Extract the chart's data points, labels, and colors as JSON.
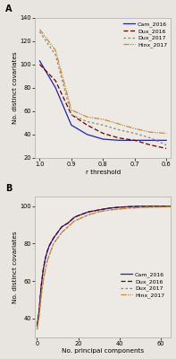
{
  "panel_A": {
    "title": "A",
    "xlabel": "r threshold",
    "ylabel": "No. distinct covariates",
    "xlim": [
      0.585,
      1.015
    ],
    "ylim": [
      20,
      140
    ],
    "yticks": [
      20,
      40,
      60,
      80,
      100,
      120,
      140
    ],
    "xticks": [
      1.0,
      0.9,
      0.8,
      0.7,
      0.6
    ],
    "series": [
      {
        "label": "Cam_2016",
        "color": "#2222aa",
        "linestyle": "solid",
        "linewidth": 0.9,
        "x": [
          1.0,
          0.95,
          0.9,
          0.85,
          0.8,
          0.75,
          0.7,
          0.65,
          0.6
        ],
        "y": [
          103,
          80,
          48,
          40,
          36,
          35,
          35,
          35,
          35
        ]
      },
      {
        "label": "Dux_2016",
        "color": "#660000",
        "linestyle": "dashed",
        "linewidth": 0.9,
        "dash_pattern": [
          4,
          2
        ],
        "x": [
          1.0,
          0.95,
          0.9,
          0.85,
          0.8,
          0.75,
          0.7,
          0.65,
          0.6
        ],
        "y": [
          100,
          86,
          57,
          48,
          41,
          37,
          35,
          31,
          28
        ]
      },
      {
        "label": "Dux_2017",
        "color": "#888866",
        "linestyle": "dashed",
        "linewidth": 0.9,
        "dash_pattern": [
          2,
          2,
          2,
          2,
          2,
          2
        ],
        "x": [
          1.0,
          0.95,
          0.9,
          0.85,
          0.8,
          0.75,
          0.7,
          0.65,
          0.6
        ],
        "y": [
          128,
          108,
          57,
          51,
          48,
          44,
          41,
          37,
          31
        ]
      },
      {
        "label": "Hinx_2017",
        "color": "#cc8833",
        "linestyle": "dashed",
        "linewidth": 0.9,
        "dash_pattern": [
          5,
          1,
          1,
          1,
          1,
          1
        ],
        "x": [
          1.0,
          0.95,
          0.9,
          0.85,
          0.8,
          0.75,
          0.7,
          0.65,
          0.6
        ],
        "y": [
          130,
          112,
          61,
          55,
          53,
          49,
          45,
          42,
          41
        ]
      }
    ]
  },
  "panel_B": {
    "title": "B",
    "xlabel": "No. principal components",
    "ylabel": "No. distinct covariates",
    "xlim": [
      -1,
      65
    ],
    "ylim": [
      30,
      105
    ],
    "yticks": [
      40,
      60,
      80,
      100
    ],
    "xticks": [
      0,
      20,
      40,
      60
    ],
    "series": [
      {
        "label": "Cam_2016",
        "color": "#2222aa",
        "linestyle": "solid",
        "linewidth": 0.9,
        "x": [
          0,
          1,
          2,
          3,
          4,
          5,
          6,
          7,
          8,
          10,
          12,
          15,
          18,
          20,
          25,
          30,
          35,
          40,
          45,
          50,
          55,
          60,
          65
        ],
        "y": [
          36,
          44,
          57,
          66,
          72,
          76,
          79,
          81,
          83,
          86,
          89,
          91,
          94,
          95,
          97,
          98,
          99,
          99.5,
          99.8,
          100,
          100,
          100,
          100
        ]
      },
      {
        "label": "Dux_2016",
        "color": "#660000",
        "linestyle": "dashed",
        "linewidth": 0.9,
        "dash_pattern": [
          4,
          2
        ],
        "x": [
          0,
          1,
          2,
          3,
          4,
          5,
          6,
          7,
          8,
          10,
          12,
          15,
          18,
          20,
          25,
          30,
          35,
          40,
          45,
          50,
          55,
          60,
          65
        ],
        "y": [
          36,
          44,
          57,
          66,
          72,
          76,
          79,
          81,
          83,
          86,
          89,
          91,
          94,
          95,
          97,
          98,
          99,
          99.5,
          99.8,
          100,
          100,
          100,
          100
        ]
      },
      {
        "label": "Dux_2017",
        "color": "#888866",
        "linestyle": "dashed",
        "linewidth": 0.9,
        "dash_pattern": [
          2,
          2,
          2,
          2,
          2,
          2
        ],
        "x": [
          0,
          1,
          2,
          3,
          4,
          5,
          6,
          7,
          8,
          10,
          12,
          15,
          18,
          20,
          25,
          30,
          35,
          40,
          45,
          50,
          55,
          60,
          65
        ],
        "y": [
          34,
          41,
          52,
          60,
          66,
          71,
          74,
          77,
          80,
          83,
          86,
          89,
          92,
          93,
          95.5,
          97,
          98,
          98.5,
          99,
          99.3,
          99.5,
          99.6,
          99.7
        ]
      },
      {
        "label": "Hinx_2017",
        "color": "#cc8833",
        "linestyle": "dashed",
        "linewidth": 0.9,
        "dash_pattern": [
          5,
          1,
          1,
          1,
          1,
          1
        ],
        "x": [
          0,
          1,
          2,
          3,
          4,
          5,
          6,
          7,
          8,
          10,
          12,
          15,
          18,
          20,
          25,
          30,
          35,
          40,
          45,
          50,
          55,
          60,
          65
        ],
        "y": [
          34,
          41,
          52,
          60,
          66,
          71,
          74,
          77,
          80,
          83,
          86,
          89,
          92,
          93,
          95.5,
          97,
          98,
          98.5,
          99,
          99.3,
          99.5,
          99.6,
          99.7
        ]
      }
    ]
  },
  "bg_color": "#e8e4e0",
  "axes_bg": "#ede9e5",
  "font_size": 5.0,
  "label_fontsize": 5.2,
  "tick_fontsize": 4.8,
  "legend_fontsize": 4.5
}
